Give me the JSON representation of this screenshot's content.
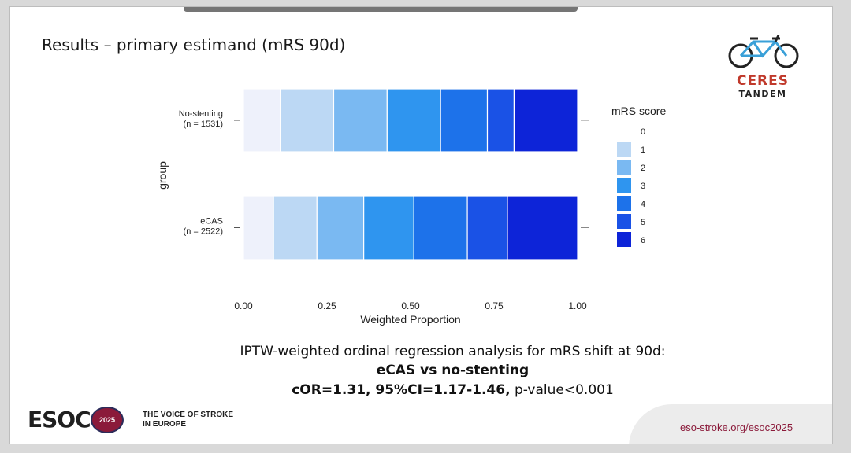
{
  "slide": {
    "title": "Results – primary estimand (mRS 90d)",
    "footer": {
      "line1": "IPTW-weighted ordinal regression analysis  for mRS shift at 90d:",
      "line2": "eCAS vs no-stenting",
      "line3_bold": "cOR=1.31, 95%CI=1.17-1.46,",
      "line3_rest": " p-value<0.001"
    },
    "ceres_logo": {
      "word": "CERES",
      "subword": "TANDEM",
      "icon": "tandem-bicycle-icon"
    },
    "esoc_logo": {
      "text": "ESOC",
      "badge": "2025"
    },
    "tagline": [
      "THE VOICE OF STROKE",
      "IN EUROPE"
    ],
    "url": "eso-stroke.org/esoc2025"
  },
  "chart_data": {
    "type": "bar",
    "orientation": "horizontal",
    "stacked": true,
    "xlabel": "Weighted Proportion",
    "ylabel": "group",
    "xlim": [
      0,
      1
    ],
    "xticks": [
      "0.00",
      "0.25",
      "0.50",
      "0.75",
      "1.00"
    ],
    "categories": [
      {
        "label": "No-stenting",
        "sublabel": "(n = 1531)"
      },
      {
        "label": "eCAS",
        "sublabel": "(n = 2522)"
      }
    ],
    "legend": {
      "title": "mRS score",
      "position": "right",
      "entries": [
        "0",
        "1",
        "2",
        "3",
        "4",
        "5",
        "6"
      ]
    },
    "series": [
      {
        "name": "0",
        "color": "#eef1fb",
        "values": [
          0.11,
          0.09
        ]
      },
      {
        "name": "1",
        "color": "#bcd8f4",
        "values": [
          0.16,
          0.13
        ]
      },
      {
        "name": "2",
        "color": "#7ab9f2",
        "values": [
          0.16,
          0.14
        ]
      },
      {
        "name": "3",
        "color": "#2f95ef",
        "values": [
          0.16,
          0.15
        ]
      },
      {
        "name": "4",
        "color": "#1d72ea",
        "values": [
          0.14,
          0.16
        ]
      },
      {
        "name": "5",
        "color": "#1a52e6",
        "values": [
          0.08,
          0.12
        ]
      },
      {
        "name": "6",
        "color": "#0d24d8",
        "values": [
          0.19,
          0.21
        ]
      }
    ]
  }
}
